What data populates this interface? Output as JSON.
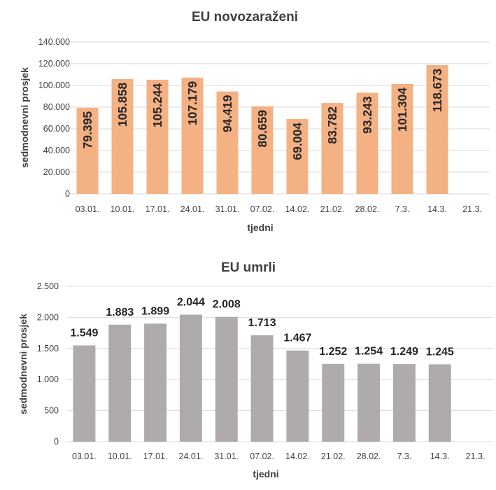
{
  "chart_data": [
    {
      "type": "bar",
      "title": "EU novozaraženi",
      "xlabel": "tjedni",
      "ylabel": "sedmodnevni prosjek",
      "categories": [
        "03.01.",
        "10.01.",
        "17.01.",
        "24.01.",
        "31.01.",
        "07.02.",
        "14.02.",
        "21.02.",
        "28.02.",
        "7.3.",
        "14.3.",
        "21.3."
      ],
      "values": [
        79395,
        105858,
        105244,
        107179,
        94419,
        80659,
        69004,
        83782,
        93243,
        101304,
        118673,
        null
      ],
      "value_labels": [
        "79.395",
        "105.858",
        "105.244",
        "107.179",
        "94.419",
        "80.659",
        "69.004",
        "83.782",
        "93.243",
        "101.304",
        "118.673",
        ""
      ],
      "ylim": [
        0,
        140000
      ],
      "yticks": [
        0,
        20000,
        40000,
        60000,
        80000,
        100000,
        120000,
        140000
      ],
      "ytick_labels": [
        "0",
        "20.000",
        "40.000",
        "60.000",
        "80.000",
        "100.000",
        "120.000",
        "140.000"
      ],
      "grid": true,
      "bar_color": "#f4b183",
      "label_orientation": "vertical-inside"
    },
    {
      "type": "bar",
      "title": "EU umrli",
      "xlabel": "tjedni",
      "ylabel": "sedmodnevni prosjek",
      "categories": [
        "03.01.",
        "10.01.",
        "17.01.",
        "24.01.",
        "31.01.",
        "07.02.",
        "14.02.",
        "21.02.",
        "28.02.",
        "7.3.",
        "14.3.",
        "21.3."
      ],
      "values": [
        1549,
        1883,
        1899,
        2044,
        2008,
        1713,
        1467,
        1252,
        1254,
        1249,
        1245,
        null
      ],
      "value_labels": [
        "1.549",
        "1.883",
        "1.899",
        "2.044",
        "2.008",
        "1.713",
        "1.467",
        "1.252",
        "1.254",
        "1.249",
        "1.245",
        ""
      ],
      "ylim": [
        0,
        2500
      ],
      "yticks": [
        0,
        500,
        1000,
        1500,
        2000,
        2500
      ],
      "ytick_labels": [
        "0",
        "500",
        "1.000",
        "1.500",
        "2.000",
        "2.500"
      ],
      "grid": true,
      "bar_color": "#afabab",
      "label_orientation": "horizontal-above"
    }
  ]
}
